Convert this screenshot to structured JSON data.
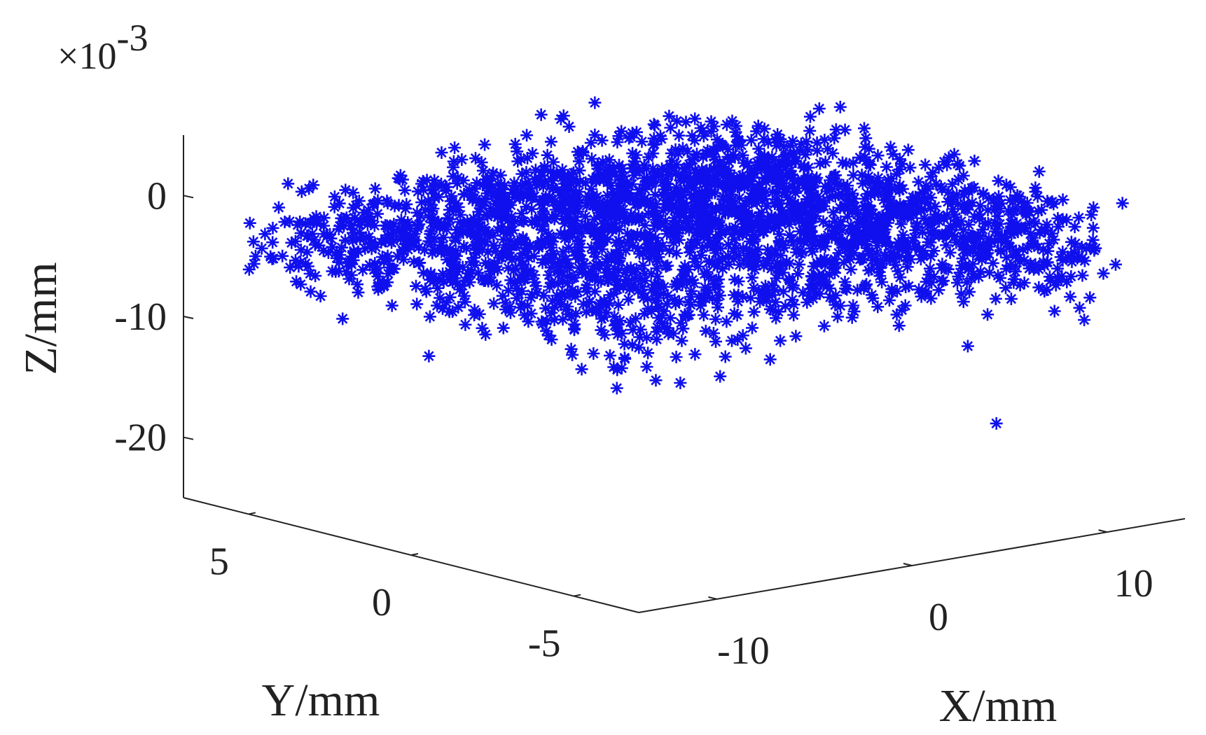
{
  "chart_data": {
    "type": "scatter",
    "marker": "asterisk",
    "marker_color": "#1010ee",
    "view": "3d",
    "grid": false,
    "xlabel": "X/mm",
    "ylabel": "Y/mm",
    "zlabel": "Z/mm",
    "z_exponent_label": "×10",
    "z_exponent_power": "-3",
    "xlim": [
      -14,
      14
    ],
    "ylim": [
      -7,
      7
    ],
    "zlim": [
      -0.025,
      0.005
    ],
    "x_ticks": [
      {
        "value": -10,
        "label": "-10"
      },
      {
        "value": 0,
        "label": "0"
      },
      {
        "value": 10,
        "label": "10"
      }
    ],
    "y_ticks": [
      {
        "value": 5,
        "label": "5"
      },
      {
        "value": 0,
        "label": "0"
      },
      {
        "value": -5,
        "label": "-5"
      }
    ],
    "z_ticks": [
      {
        "value": 0,
        "label": "0"
      },
      {
        "value": -0.01,
        "label": "-10"
      },
      {
        "value": -0.02,
        "label": "-20"
      }
    ],
    "bulk_points": {
      "count": 2600,
      "x_range": [
        -13,
        13
      ],
      "y_range": [
        -6,
        6
      ],
      "z_mean": -0.003,
      "z_spread": 0.004
    },
    "outliers": [
      {
        "x": -3.5,
        "y": 5.5,
        "z": -0.011
      },
      {
        "x": 2.6,
        "y": 5.8,
        "z": -0.015
      },
      {
        "x": 3.2,
        "y": 6.0,
        "z": -0.016
      },
      {
        "x": 3.6,
        "y": 5.0,
        "z": -0.013
      },
      {
        "x": 4.8,
        "y": 3.0,
        "z": -0.018
      },
      {
        "x": 11.0,
        "y": -3.0,
        "z": -0.019
      },
      {
        "x": 10.7,
        "y": -2.3,
        "z": -0.013
      },
      {
        "x": 14.5,
        "y": -3.6,
        "z": -0.011
      },
      {
        "x": 2.0,
        "y": -5.0,
        "z": 0.0045
      },
      {
        "x": 7.0,
        "y": -5.0,
        "z": 0.0025
      },
      {
        "x": 10.0,
        "y": -4.8,
        "z": 0.002
      }
    ]
  }
}
